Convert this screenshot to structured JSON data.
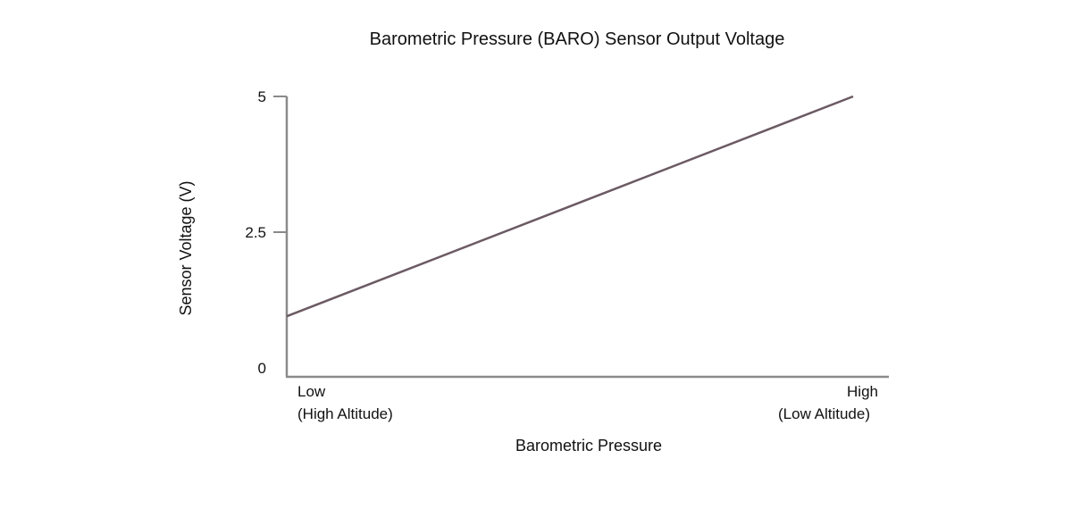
{
  "chart_data": {
    "type": "line",
    "title": "Barometric Pressure (BARO) Sensor Output Voltage",
    "xlabel": "Barometric Pressure",
    "ylabel": "Sensor Voltage (V)",
    "xlim": [
      0,
      1
    ],
    "ylim": [
      0,
      5
    ],
    "y_ticks": [
      {
        "value": 0,
        "label": "0"
      },
      {
        "value": 2.5,
        "label": "2.5"
      },
      {
        "value": 5,
        "label": "5"
      }
    ],
    "x_ticks": [
      {
        "value": 0,
        "lines": [
          "Low",
          "(High Altitude)"
        ],
        "anchor": "start"
      },
      {
        "value": 1,
        "lines": [
          "High",
          "(Low Altitude)"
        ],
        "anchor": "end"
      }
    ],
    "series": [
      {
        "x": [
          0,
          1
        ],
        "y": [
          0.95,
          5
        ],
        "color": "#6b5a63"
      }
    ],
    "grid": false,
    "legend": "none"
  }
}
